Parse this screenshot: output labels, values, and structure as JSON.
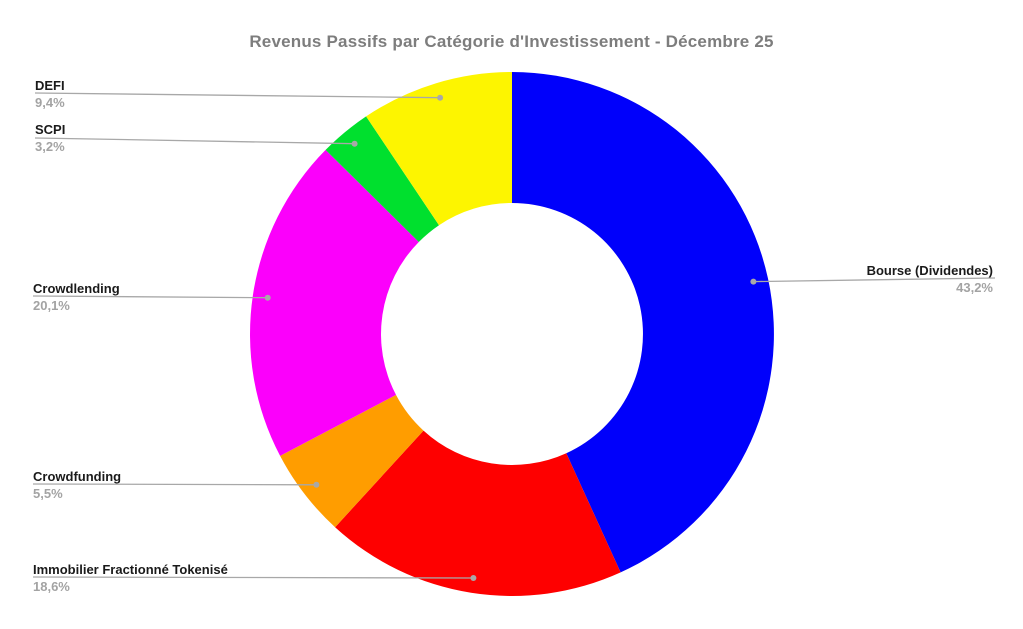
{
  "chart_data": {
    "type": "pie",
    "variant": "donut",
    "title": "Revenus Passifs par Catégorie d'Investissement - Décembre 25",
    "unit": "%",
    "total": 100,
    "direction": "clockwise",
    "start_angle_deg": 0,
    "hole_ratio": 0.5,
    "legend_position": "outside-callouts",
    "background_color": "#ffffff",
    "title_color": "#7d7d7d",
    "callout_line_color": "#a8a8a8",
    "label_color": "#1a1a1a",
    "pct_color": "#a3a3a3",
    "slices": [
      {
        "label": "Bourse (Dividendes)",
        "value": 43.2,
        "pct_label": "43,2%",
        "color": "#0000fb"
      },
      {
        "label": "Immobilier Fractionné Tokenisé",
        "value": 18.6,
        "pct_label": "18,6%",
        "color": "#fe0000"
      },
      {
        "label": "Crowdfunding",
        "value": 5.5,
        "pct_label": "5,5%",
        "color": "#ff9d00"
      },
      {
        "label": "Crowdlending",
        "value": 20.1,
        "pct_label": "20,1%",
        "color": "#fb00fb"
      },
      {
        "label": "SCPI",
        "value": 3.2,
        "pct_label": "3,2%",
        "color": "#00e02e"
      },
      {
        "label": "DEFI",
        "value": 9.4,
        "pct_label": "9,4%",
        "color": "#fdf500"
      }
    ]
  }
}
